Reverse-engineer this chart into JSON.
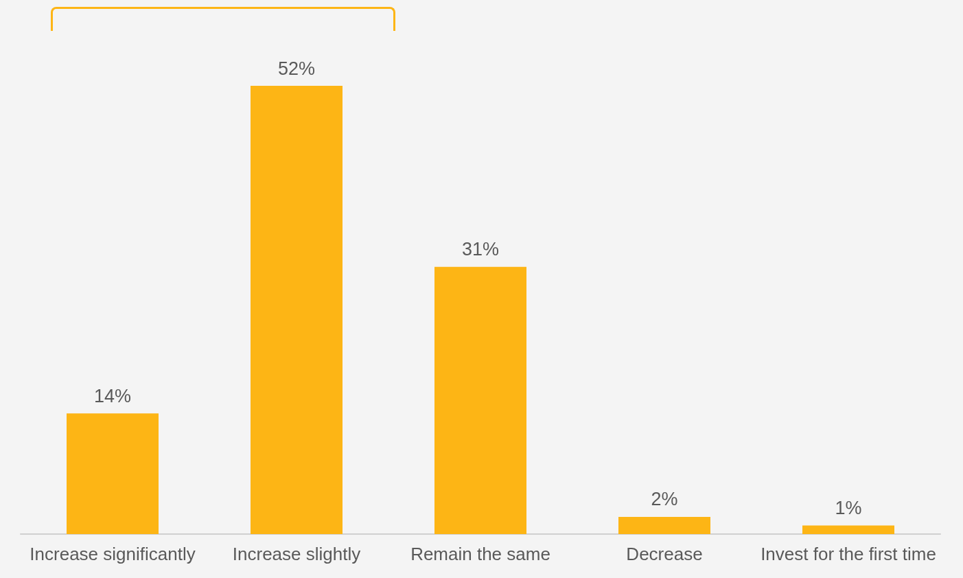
{
  "chart_data": {
    "type": "bar",
    "categories": [
      "Increase significantly",
      "Increase slightly",
      "Remain the same",
      "Decrease",
      "Invest for the first time"
    ],
    "values": [
      14,
      52,
      31,
      2,
      1
    ],
    "value_labels": [
      "14%",
      "52%",
      "31%",
      "2%",
      "1%"
    ],
    "color": "#fdb515"
  }
}
